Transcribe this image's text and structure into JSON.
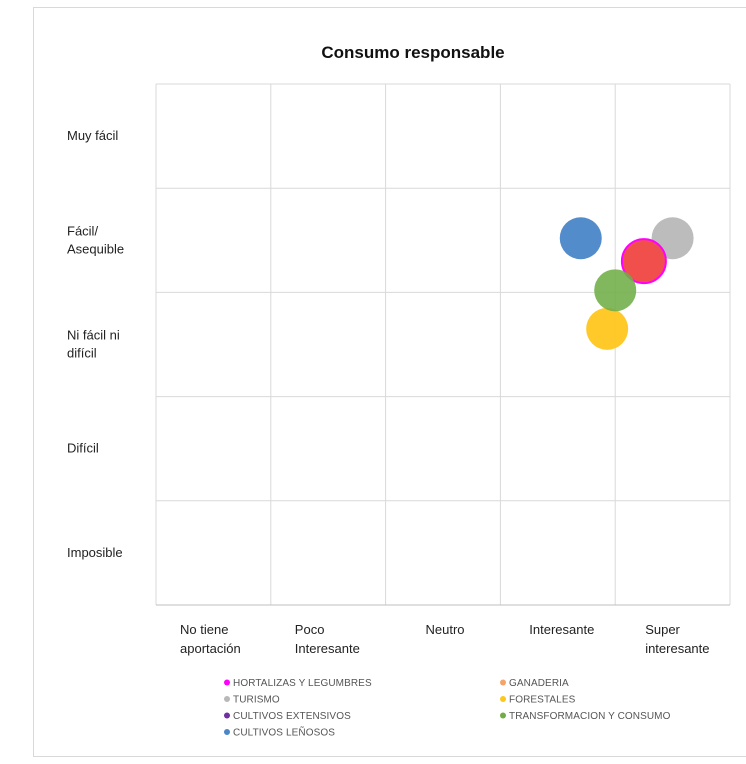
{
  "chart_data": {
    "type": "bubble",
    "title": "Consumo responsable",
    "x_categories": [
      [
        "No tiene",
        "aportación"
      ],
      [
        "Poco",
        "Interesante"
      ],
      [
        "Neutro"
      ],
      [
        "Interesante"
      ],
      [
        "Super",
        "interesante"
      ]
    ],
    "y_categories": [
      [
        "Imposible"
      ],
      [
        "Difícil"
      ],
      [
        "Ni fácil ni",
        "difícil"
      ],
      [
        "Fácil/",
        "Asequible"
      ],
      [
        "Muy fácil"
      ]
    ],
    "xlim": [
      0,
      5
    ],
    "ylim": [
      0,
      5
    ],
    "grid": true,
    "legend_position": "bottom",
    "series": [
      {
        "name": "HORTALIZAS Y LEGUMBRES",
        "color": "#ff00ff",
        "fill": "#f04a4a",
        "outline": true,
        "x": 4.25,
        "y": 3.3
      },
      {
        "name": "GANADERIA",
        "color": "#f4a46a",
        "fill": "#f4a46a",
        "outline": false,
        "x": 4.25,
        "y": 3.3
      },
      {
        "name": "TURISMO",
        "color": "#b8b8b8",
        "fill": "#b8b8b8",
        "outline": false,
        "x": 4.5,
        "y": 3.52
      },
      {
        "name": "FORESTALES",
        "color": "#ffc61e",
        "fill": "#ffc61e",
        "outline": false,
        "x": 3.93,
        "y": 2.65
      },
      {
        "name": "CULTIVOS EXTENSIVOS",
        "color": "#7030a0",
        "fill": "#7030a0",
        "outline": false,
        "x": null,
        "y": null
      },
      {
        "name": "TRANSFORMACION Y CONSUMO",
        "color": "#70ad47",
        "fill": "#70ad47",
        "outline": false,
        "x": 4.0,
        "y": 3.02
      },
      {
        "name": "CULTIVOS LEÑOSOS",
        "color": "#4a86c8",
        "fill": "#4a86c8",
        "outline": false,
        "x": 3.7,
        "y": 3.52
      }
    ]
  }
}
